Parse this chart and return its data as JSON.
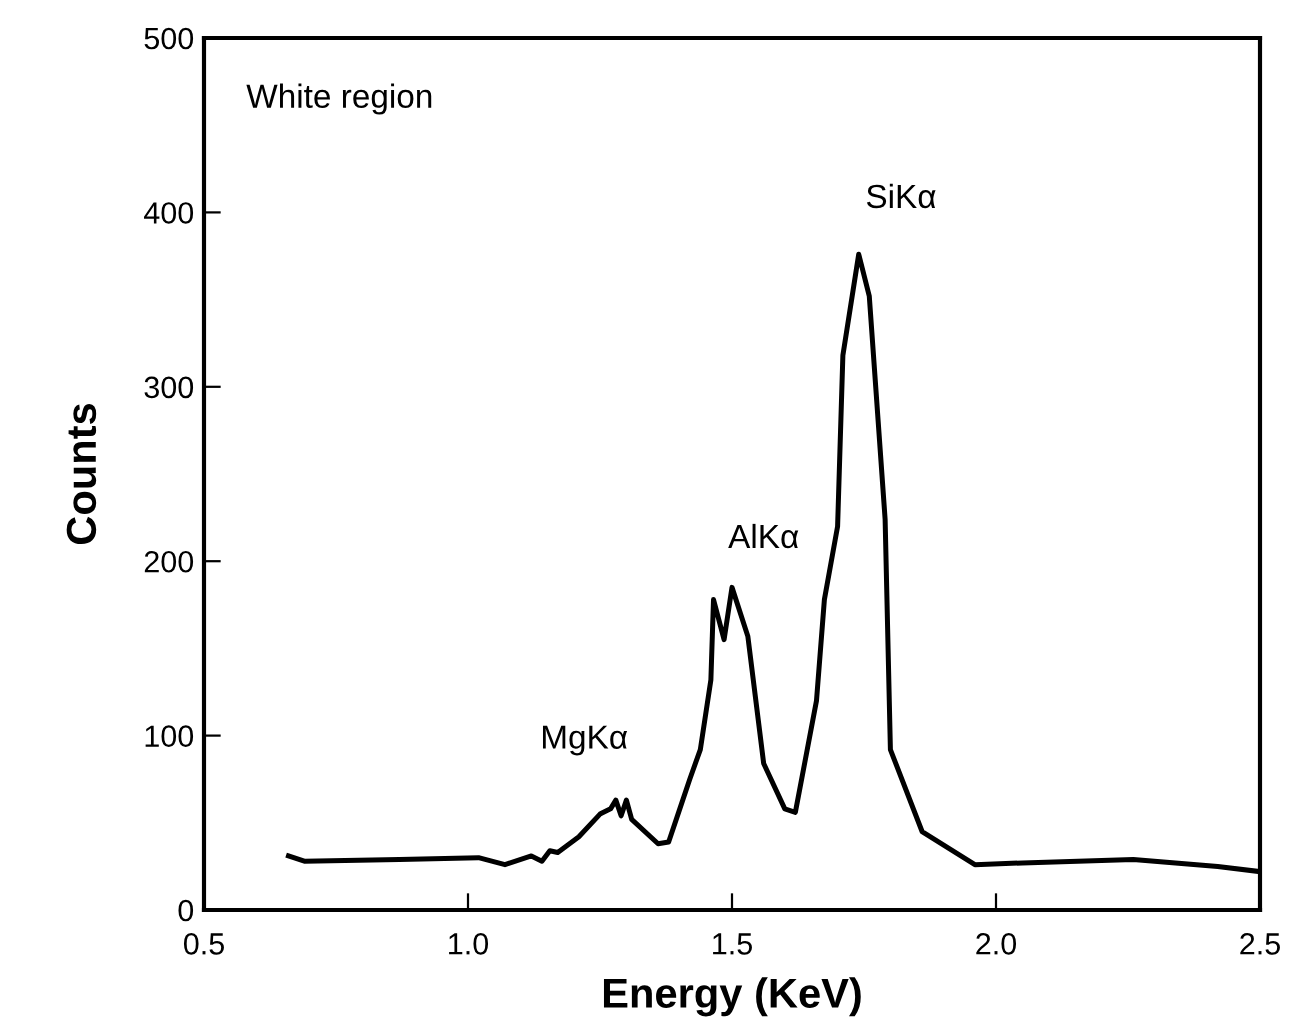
{
  "chart_data": {
    "type": "line",
    "xlabel": "Energy (KeV)",
    "ylabel": "Counts",
    "xlim": [
      0.5,
      2.5
    ],
    "ylim": [
      0,
      500
    ],
    "xticks": [
      {
        "value": 0.5,
        "label": "0.5"
      },
      {
        "value": 1.0,
        "label": "1.0"
      },
      {
        "value": 1.5,
        "label": "1.5"
      },
      {
        "value": 2.0,
        "label": "2.0"
      },
      {
        "value": 2.5,
        "label": "2.5"
      }
    ],
    "yticks": [
      0,
      100,
      200,
      300,
      400,
      500
    ],
    "grid": false,
    "marker": "none",
    "line_style": "solid",
    "series": [
      {
        "color": "#000000",
        "x": [
          0.66,
          0.69,
          0.87,
          1.02,
          1.07,
          1.12,
          1.14,
          1.155,
          1.17,
          1.21,
          1.25,
          1.27,
          1.28,
          1.29,
          1.3,
          1.31,
          1.36,
          1.38,
          1.4,
          1.42,
          1.44,
          1.46,
          1.465,
          1.485,
          1.5,
          1.53,
          1.56,
          1.6,
          1.62,
          1.66,
          1.675,
          1.7,
          1.71,
          1.74,
          1.76,
          1.79,
          1.8,
          1.86,
          1.96,
          2.05,
          2.26,
          2.42,
          2.5
        ],
        "values": [
          31,
          28,
          29,
          30,
          26,
          31,
          28,
          34,
          33,
          42,
          55,
          58,
          63,
          54,
          63,
          52,
          38,
          39,
          57,
          75,
          92,
          132,
          178,
          155,
          185,
          157,
          84,
          58,
          56,
          120,
          178,
          220,
          318,
          376,
          352,
          224,
          92,
          45,
          26,
          27,
          29,
          25,
          22
        ]
      }
    ],
    "annotations": [
      "White region",
      "MgKα",
      "AlKα",
      "SiKα"
    ]
  }
}
